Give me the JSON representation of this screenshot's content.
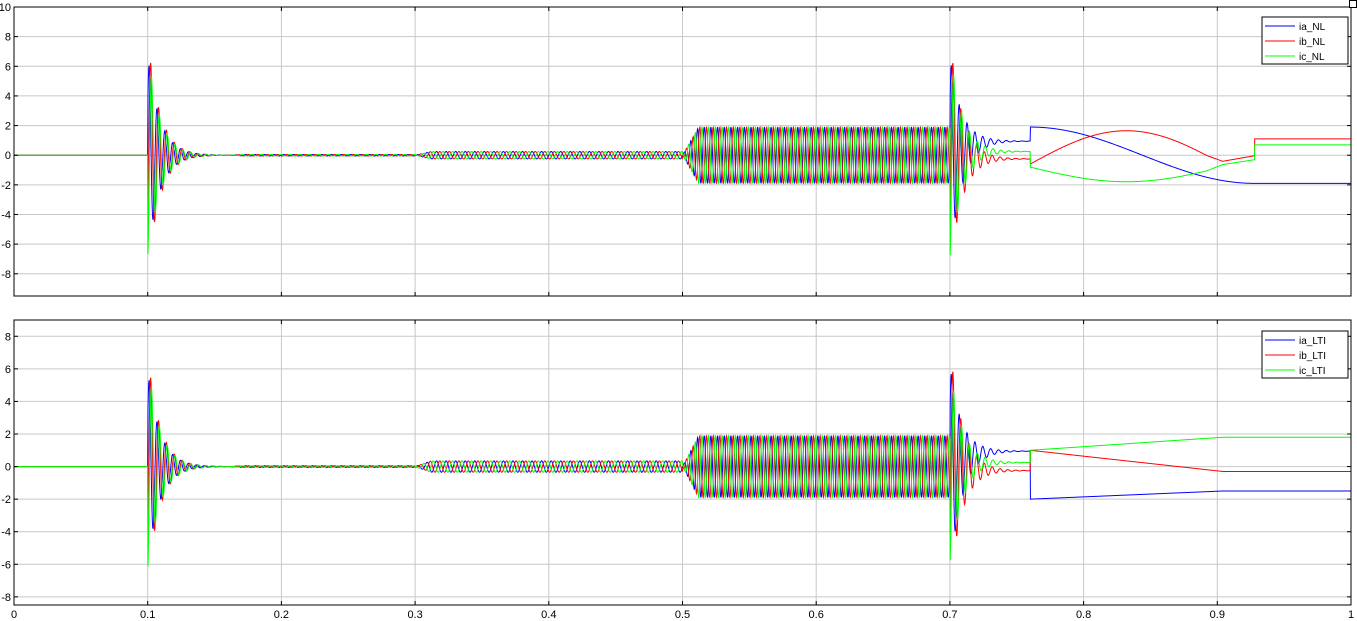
{
  "chart_data": [
    {
      "type": "line",
      "title": "",
      "xlabel": "",
      "ylabel": "",
      "xlim": [
        0,
        1
      ],
      "ylim": [
        -9.5,
        10
      ],
      "xticks": [
        0,
        0.1,
        0.2,
        0.3,
        0.4,
        0.5,
        0.6,
        0.7,
        0.8,
        0.9,
        1
      ],
      "x_tick_labels": [
        "0",
        "0.1",
        "0.2",
        "0.3",
        "0.4",
        "0.5",
        "0.6",
        "0.7",
        "0.8",
        "0.9",
        "1"
      ],
      "show_x_tick_labels": false,
      "yticks": [
        -8,
        -6,
        -4,
        -2,
        0,
        2,
        4,
        6,
        8,
        10
      ],
      "y_tick_labels": [
        "-8",
        "-6",
        "-4",
        "-2",
        "0",
        "2",
        "4",
        "6",
        "8",
        "10"
      ],
      "grid": true,
      "legend_position": "top-right",
      "series": [
        {
          "name": "ia_NL",
          "color": "#0000ff"
        },
        {
          "name": "ib_NL",
          "color": "#ff0000"
        },
        {
          "name": "ic_NL",
          "color": "#00ff00"
        }
      ],
      "segments": [
        {
          "t": [
            0.0,
            0.1
          ],
          "waveform": "zero"
        },
        {
          "t": [
            0.1,
            0.16
          ],
          "waveform": "decaying_transient",
          "peak_max": 8.0,
          "peak_min": -7.3
        },
        {
          "t": [
            0.16,
            0.3
          ],
          "waveform": "sinusoid_3phase",
          "amplitude": 0.05
        },
        {
          "t": [
            0.3,
            0.5
          ],
          "waveform": "sinusoid_3phase",
          "amplitude": 0.25
        },
        {
          "t": [
            0.5,
            0.7
          ],
          "waveform": "sinusoid_3phase",
          "amplitude": 1.9
        },
        {
          "t": [
            0.7,
            0.76
          ],
          "waveform": "decaying_transient",
          "peak_max": 8.0,
          "peak_min": -7.4
        },
        {
          "t": [
            0.76,
            1.0
          ],
          "waveform": "slow_drift",
          "final_values": [
            -1.9,
            1.1,
            0.7
          ]
        }
      ]
    },
    {
      "type": "line",
      "title": "",
      "xlabel": "",
      "ylabel": "",
      "xlim": [
        0,
        1
      ],
      "ylim": [
        -8.5,
        9
      ],
      "xticks": [
        0,
        0.1,
        0.2,
        0.3,
        0.4,
        0.5,
        0.6,
        0.7,
        0.8,
        0.9,
        1
      ],
      "x_tick_labels": [
        "0",
        "0.1",
        "0.2",
        "0.3",
        "0.4",
        "0.5",
        "0.6",
        "0.7",
        "0.8",
        "0.9",
        "1"
      ],
      "show_x_tick_labels": true,
      "yticks": [
        -8,
        -6,
        -4,
        -2,
        0,
        2,
        4,
        6,
        8
      ],
      "y_tick_labels": [
        "-8",
        "-6",
        "-4",
        "-2",
        "0",
        "2",
        "4",
        "6",
        "8"
      ],
      "grid": true,
      "legend_position": "top-right",
      "series": [
        {
          "name": "ia_LTI",
          "color": "#0000ff"
        },
        {
          "name": "ib_LTI",
          "color": "#ff0000"
        },
        {
          "name": "ic_LTI",
          "color": "#00ff00"
        }
      ],
      "segments": [
        {
          "t": [
            0.0,
            0.1
          ],
          "waveform": "zero"
        },
        {
          "t": [
            0.1,
            0.16
          ],
          "waveform": "decaying_transient",
          "peak_max": 7.0,
          "peak_min": -6.7
        },
        {
          "t": [
            0.16,
            0.3
          ],
          "waveform": "sinusoid_3phase",
          "amplitude": 0.05
        },
        {
          "t": [
            0.3,
            0.5
          ],
          "waveform": "sinusoid_3phase",
          "amplitude": 0.35
        },
        {
          "t": [
            0.5,
            0.7
          ],
          "waveform": "sinusoid_3phase",
          "amplitude": 1.9
        },
        {
          "t": [
            0.7,
            0.76
          ],
          "waveform": "decaying_transient",
          "peak_max": 7.5,
          "peak_min": -6.3
        },
        {
          "t": [
            0.76,
            1.0
          ],
          "waveform": "slow_drift",
          "final_values": [
            -1.5,
            -0.3,
            1.8
          ]
        }
      ]
    }
  ]
}
